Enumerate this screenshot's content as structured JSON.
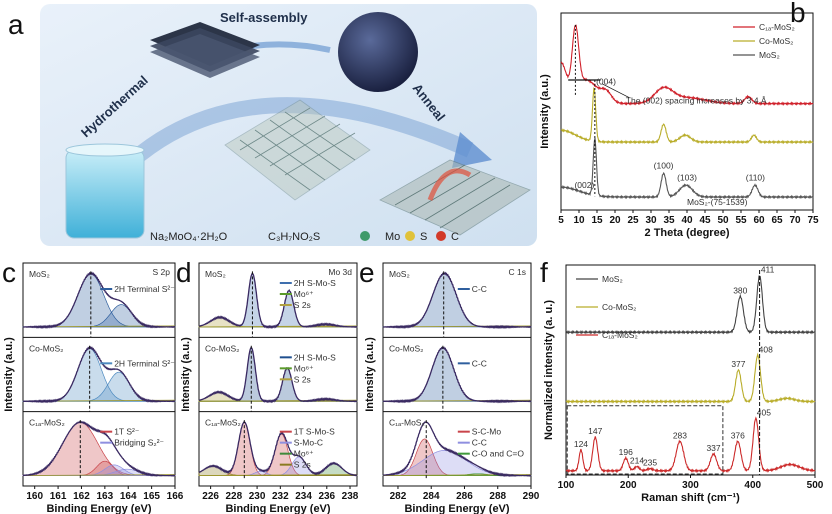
{
  "panel_letters": {
    "a": "a",
    "b": "b",
    "c": "c",
    "d": "d",
    "e": "e",
    "f": "f"
  },
  "schematic": {
    "hydrothermal": "Hydrothermal",
    "self_assembly": "Self-assembly",
    "anneal": "Anneal",
    "reagent_1": "Na₂MoO₄·2H₂O",
    "reagent_2": "C₃H₇NO₂S",
    "atoms": [
      {
        "symbol": "Mo",
        "color": "#3f9a6a"
      },
      {
        "symbol": "S",
        "color": "#e0c23a"
      },
      {
        "symbol": "C",
        "color": "#d23a2a"
      }
    ]
  },
  "chart_data": [
    {
      "panel": "b",
      "type": "line",
      "xlabel": "2 Theta (degree)",
      "ylabel": "Intensity (a.u.)",
      "xlim": [
        5,
        75
      ],
      "xticks": [
        5,
        10,
        15,
        20,
        25,
        30,
        35,
        40,
        45,
        50,
        55,
        60,
        65,
        70,
        75
      ],
      "legend_position": "top-right",
      "series": [
        {
          "name": "C₁ₐ-MoS₂",
          "color": "#d0202a",
          "offset": 0.54,
          "peaks": [
            [
              5,
              0.2,
              1.5
            ],
            [
              9,
              0.32,
              0.9
            ],
            [
              12,
              0.12,
              3
            ],
            [
              17.6,
              0.05,
              1.5
            ],
            [
              33.5,
              0.07,
              2.5
            ],
            [
              40,
              0.03,
              5
            ],
            [
              57,
              0.035,
              1
            ]
          ]
        },
        {
          "name": "Co-MoS₂",
          "color": "#b9ad2a",
          "offset": 0.345,
          "peaks": [
            [
              5,
              0.06,
              4
            ],
            [
              14.2,
              0.27,
              0.45
            ],
            [
              33.5,
              0.09,
              0.7
            ],
            [
              39.5,
              0.035,
              1.5
            ],
            [
              58.6,
              0.035,
              0.7
            ]
          ]
        },
        {
          "name": "MoS₂",
          "color": "#555555",
          "offset": 0.066,
          "peaks": [
            [
              5,
              0.05,
              5
            ],
            [
              14.4,
              0.29,
              0.45
            ],
            [
              33.5,
              0.12,
              0.7
            ],
            [
              39.7,
              0.06,
              1.8
            ],
            [
              58.9,
              0.06,
              0.8
            ]
          ]
        }
      ],
      "annotations": [
        {
          "text": "(004)",
          "x": 17.5,
          "series": 0
        },
        {
          "text": "(002)",
          "x": 11.5,
          "series": 2
        },
        {
          "text": "(100)",
          "x": 33.5,
          "series": 2
        },
        {
          "text": "(103)",
          "x": 40,
          "series": 2
        },
        {
          "text": "(110)",
          "x": 59,
          "series": 2
        }
      ],
      "note": "The (002) spacing increases by 3.4 Å",
      "reference": "MoS₂-(75-1539)"
    },
    {
      "panel": "c",
      "type": "area",
      "title": "S 2p",
      "xlabel": "Binding Energy (eV)",
      "ylabel": "Intensity (a.u.)",
      "xlim": [
        159.5,
        166
      ],
      "xticks": [
        160,
        161,
        162,
        163,
        164,
        165,
        166
      ],
      "subplots": [
        {
          "label": "MoS₂",
          "dashed_at": 162.4,
          "components": [
            {
              "name": "2H Terminal S²⁻",
              "color": "#2f5f9e",
              "peaks": [
                [
                  162.4,
                  1,
                  0.55
                ],
                [
                  163.7,
                  0.42,
                  0.45
                ]
              ]
            }
          ]
        },
        {
          "label": "Co-MoS₂",
          "dashed_at": 162.35,
          "components": [
            {
              "name": "2H Terminal S²⁻",
              "color": "#4d8ac0",
              "peaks": [
                [
                  162.35,
                  1,
                  0.5
                ],
                [
                  163.6,
                  0.55,
                  0.45
                ]
              ]
            }
          ]
        },
        {
          "label": "C₁ₐ-MoS₂",
          "dashed_at": 161.95,
          "components": [
            {
              "name": "1T S²⁻",
              "color": "#c9444a",
              "peaks": [
                [
                  161.95,
                  1,
                  0.75
                ],
                [
                  163.0,
                  0.27,
                  0.35
                ]
              ]
            },
            {
              "name": "Bridging S₂²⁻",
              "color": "#8f8fe0",
              "peaks": [
                [
                  163.4,
                  0.2,
                  0.4
                ],
                [
                  163.95,
                  0.12,
                  0.5
                ]
              ]
            }
          ]
        }
      ]
    },
    {
      "panel": "d",
      "type": "area",
      "title": "Mo 3d",
      "xlabel": "Binding Energy (eV)",
      "ylabel": "Intensity (a.u.)",
      "xlim": [
        225,
        238.6
      ],
      "xticks": [
        226,
        228,
        230,
        232,
        234,
        236,
        238
      ],
      "subplots": [
        {
          "label": "MoS₂",
          "dashed_at": 229.6,
          "components": [
            {
              "name": "2H S-Mo-S",
              "color": "#3f6fae",
              "peaks": [
                [
                  229.6,
                  1,
                  0.35
                ],
                [
                  232.75,
                  0.68,
                  0.4
                ]
              ]
            },
            {
              "name": "Mo⁶⁺",
              "color": "#5a9a2a",
              "peaks": [
                [
                  235.9,
                  0.05,
                  0.8
                ]
              ]
            },
            {
              "name": "S 2s",
              "color": "#b0a040",
              "peaks": [
                [
                  226.8,
                  0.18,
                  0.8
                ]
              ]
            }
          ]
        },
        {
          "label": "Co-MoS₂",
          "dashed_at": 229.5,
          "components": [
            {
              "name": "2H S-Mo-S",
              "color": "#1f4f8e",
              "peaks": [
                [
                  229.5,
                  1,
                  0.35
                ],
                [
                  232.6,
                  0.62,
                  0.4
                ]
              ]
            },
            {
              "name": "Mo⁶⁺",
              "color": "#5a9a2a",
              "peaks": [
                [
                  235.9,
                  0.04,
                  0.8
                ]
              ]
            },
            {
              "name": "S 2s",
              "color": "#b0a040",
              "peaks": [
                [
                  226.7,
                  0.17,
                  0.8
                ]
              ]
            }
          ]
        },
        {
          "label": "C₁ₐ-MoS₂",
          "dashed_at": 228.9,
          "components": [
            {
              "name": "1T S-Mo-S",
              "color": "#c9444a",
              "peaks": [
                [
                  228.9,
                  1,
                  0.5
                ],
                [
                  232.1,
                  0.78,
                  0.55
                ]
              ]
            },
            {
              "name": "S-Mo-C",
              "color": "#8f8fe0",
              "peaks": [
                [
                  230.3,
                  0.08,
                  0.5
                ],
                [
                  233.6,
                  0.35,
                  0.6
                ]
              ]
            },
            {
              "name": "Mo⁶⁺",
              "color": "#3f8a3a",
              "peaks": [
                [
                  236.6,
                  0.23,
                  0.7
                ]
              ]
            },
            {
              "name": "S 2s",
              "color": "#8a7a20",
              "peaks": [
                [
                  226.2,
                  0.18,
                  0.8
                ]
              ]
            }
          ]
        }
      ]
    },
    {
      "panel": "e",
      "type": "area",
      "title": "C 1s",
      "xlabel": "Binding Energy (eV)",
      "ylabel": "Intensity (a.u.)",
      "xlim": [
        281.1,
        290
      ],
      "xticks": [
        282,
        284,
        286,
        288,
        290
      ],
      "subplots": [
        {
          "label": "MoS₂",
          "dashed_at": 284.75,
          "components": [
            {
              "name": "C-C",
              "color": "#2f5f9e",
              "peaks": [
                [
                  284.8,
                  1,
                  0.7
                ]
              ]
            }
          ]
        },
        {
          "label": "Co-MoS₂",
          "dashed_at": 284.7,
          "components": [
            {
              "name": "C-C",
              "color": "#2f5f9e",
              "peaks": [
                [
                  284.7,
                  1,
                  0.65
                ]
              ]
            }
          ]
        },
        {
          "label": "C₁ₐ-MoS₂",
          "dashed_at": 283.7,
          "components": [
            {
              "name": "S-C-Mo",
              "color": "#c9444a",
              "peaks": [
                [
                  283.6,
                  0.8,
                  0.5
                ]
              ]
            },
            {
              "name": "C-C",
              "color": "#8f8fe0",
              "peaks": [
                [
                  284.8,
                  0.55,
                  1.3
                ]
              ]
            },
            {
              "name": "C-O and C=O",
              "color": "#3f9a3a",
              "peaks": [
                [
                  286.8,
                  0.04,
                  0.6
                ]
              ]
            }
          ]
        }
      ]
    },
    {
      "panel": "f",
      "type": "line",
      "xlabel": "Raman shift (cm⁻¹)",
      "ylabel": "Normalized intensity (a. u.)",
      "xlim": [
        100,
        500
      ],
      "xticks": [
        100,
        200,
        300,
        400,
        500
      ],
      "legend_position": "top-left",
      "dashed_at": 411,
      "series": [
        {
          "name": "MoS₂",
          "color": "#444444",
          "offset": 0.68,
          "peaks": [
            [
              380,
              0.17,
              5
            ],
            [
              411,
              0.27,
              4.5
            ]
          ],
          "peak_labels": [
            380,
            411
          ]
        },
        {
          "name": "Co-MoS₂",
          "color": "#b9ad2a",
          "offset": 0.35,
          "peaks": [
            [
              377,
              0.15,
              4.5
            ],
            [
              408,
              0.22,
              4.5
            ],
            [
              455,
              0.015,
              12
            ]
          ],
          "peak_labels": [
            377,
            408
          ]
        },
        {
          "name": "C₁ₐ-MoS₂",
          "color": "#cc2a2a",
          "offset": 0.02,
          "peaks": [
            [
              124,
              0.1,
              3
            ],
            [
              147,
              0.16,
              4
            ],
            [
              196,
              0.06,
              4
            ],
            [
              214,
              0.02,
              4
            ],
            [
              235,
              0.01,
              5
            ],
            [
              283,
              0.14,
              6
            ],
            [
              337,
              0.08,
              5
            ],
            [
              376,
              0.14,
              5
            ],
            [
              405,
              0.25,
              4.5
            ],
            [
              460,
              0.03,
              15
            ]
          ],
          "peak_labels": [
            124,
            147,
            196,
            214,
            235,
            283,
            337,
            376,
            405
          ]
        }
      ]
    }
  ]
}
